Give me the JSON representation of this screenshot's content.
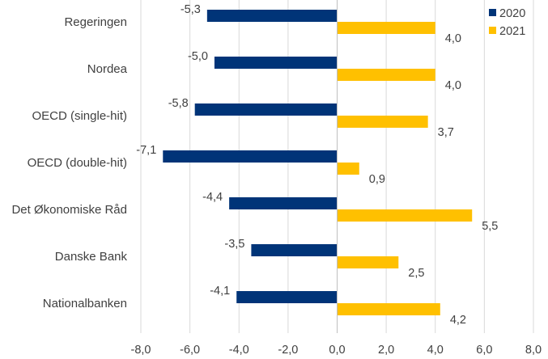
{
  "chart_data": {
    "type": "bar",
    "orientation": "horizontal",
    "title": "",
    "xlabel": "",
    "ylabel": "",
    "categories": [
      "Regeringen",
      "Nordea",
      "OECD (single-hit)",
      "OECD (double-hit)",
      "Det Økonomiske Råd",
      "Danske Bank",
      "Nationalbanken"
    ],
    "series": [
      {
        "name": "2020",
        "values": [
          -5.3,
          -5.0,
          -5.8,
          -7.1,
          -4.4,
          -3.5,
          -4.1
        ],
        "labels": [
          "-5,3",
          "-5,0",
          "-5,8",
          "-7,1",
          "-4,4",
          "-3,5",
          "-4,1"
        ],
        "color": "#003478"
      },
      {
        "name": "2021",
        "values": [
          4.0,
          4.0,
          3.7,
          0.9,
          5.5,
          2.5,
          4.2
        ],
        "labels": [
          "4,0",
          "4,0",
          "3,7",
          "0,9",
          "5,5",
          "2,5",
          "4,2"
        ],
        "color": "#FFC000"
      }
    ],
    "xlim": [
      -8,
      8
    ],
    "xticks": [
      -8,
      -6,
      -4,
      -2,
      0,
      2,
      4,
      6,
      8
    ],
    "xtick_labels": [
      "-8,0",
      "-6,0",
      "-4,0",
      "-2,0",
      "0,0",
      "2,0",
      "4,0",
      "6,0",
      "8,0"
    ],
    "grid": true,
    "legend": "top-right",
    "colors": {
      "grid": "#d9d9d9",
      "axis": "#bfbfbf",
      "text": "#404040"
    }
  }
}
